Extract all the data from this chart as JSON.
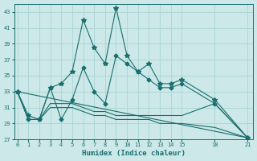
{
  "xlabel": "Humidex (Indice chaleur)",
  "ylabel": "",
  "bg_color": "#cce8e8",
  "line_color": "#1a6e6e",
  "grid_color": "#aad4d4",
  "xlim": [
    -0.3,
    21.5
  ],
  "ylim": [
    27,
    44
  ],
  "yticks": [
    27,
    29,
    31,
    33,
    35,
    37,
    39,
    41,
    43
  ],
  "xticks": [
    0,
    1,
    2,
    3,
    4,
    5,
    6,
    7,
    8,
    9,
    10,
    11,
    12,
    13,
    14,
    15,
    18,
    21
  ],
  "series": [
    {
      "x": [
        0,
        1,
        2,
        3,
        4,
        5,
        6,
        7,
        8,
        9,
        10,
        11,
        12,
        13,
        14,
        15,
        18,
        21
      ],
      "y": [
        33,
        30,
        29.5,
        33.5,
        34,
        35.5,
        42,
        38.5,
        36.5,
        43.5,
        37.5,
        35.5,
        36.5,
        34,
        34,
        34.5,
        32,
        27.2
      ],
      "marker": "*",
      "markersize": 4
    },
    {
      "x": [
        0,
        1,
        2,
        3,
        4,
        5,
        6,
        7,
        8,
        9,
        10,
        11,
        12,
        13,
        14,
        15,
        18,
        21
      ],
      "y": [
        33,
        29.5,
        29.5,
        33.5,
        29.5,
        32,
        36,
        33,
        31.5,
        37.5,
        36.5,
        35.5,
        34.5,
        33.5,
        33.5,
        34,
        31.5,
        27.2
      ],
      "marker": "D",
      "markersize": 2.5
    },
    {
      "x": [
        0,
        1,
        2,
        3,
        4,
        5,
        6,
        7,
        8,
        9,
        10,
        11,
        12,
        13,
        14,
        15,
        18,
        21
      ],
      "y": [
        33,
        29.5,
        29.5,
        31.5,
        31.5,
        31.5,
        31,
        30.5,
        30.5,
        30,
        30,
        30,
        30,
        30,
        30,
        30,
        31.5,
        27.2
      ],
      "marker": null,
      "markersize": 0
    },
    {
      "x": [
        0,
        1,
        2,
        3,
        4,
        5,
        6,
        7,
        8,
        9,
        10,
        11,
        12,
        13,
        14,
        15,
        18,
        21
      ],
      "y": [
        33,
        29.5,
        29.5,
        31,
        31,
        31,
        30.5,
        30,
        30,
        29.5,
        29.5,
        29.5,
        29.5,
        29,
        29,
        29,
        28.5,
        27.2
      ],
      "marker": null,
      "markersize": 0
    },
    {
      "x": [
        0,
        21
      ],
      "y": [
        33,
        27.2
      ],
      "marker": null,
      "markersize": 0
    }
  ]
}
